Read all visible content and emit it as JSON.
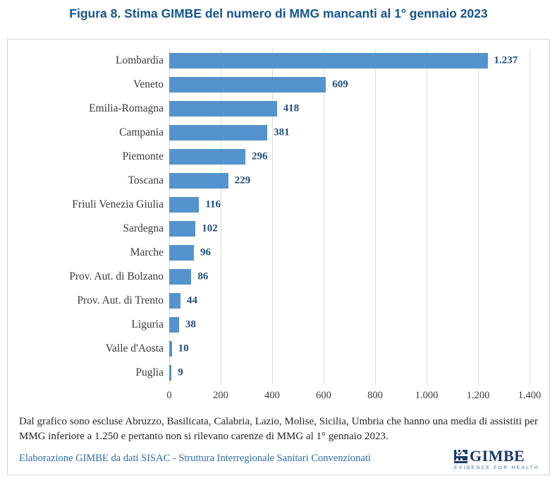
{
  "title": "Figura 8. Stima GIMBE del numero di MMG mancanti al 1° gennaio 2023",
  "chart_data": {
    "type": "bar",
    "orientation": "horizontal",
    "title": "Figura 8. Stima GIMBE del numero di MMG mancanti al 1° gennaio 2023",
    "xlabel": "",
    "ylabel": "",
    "xlim": [
      0,
      1400
    ],
    "grid": true,
    "bar_color": "#5493cd",
    "x_ticks": [
      0,
      200,
      400,
      600,
      800,
      1000,
      1200,
      1400
    ],
    "x_tick_labels": [
      "0",
      "200",
      "400",
      "600",
      "800",
      "1.000",
      "1.200",
      "1.400"
    ],
    "categories": [
      "Lombardia",
      "Veneto",
      "Emilia-Romagna",
      "Campania",
      "Piemonte",
      "Toscana",
      "Friuli Venezia Giulia",
      "Sardegna",
      "Marche",
      "Prov. Aut. di Bolzano",
      "Prov. Aut. di Trento",
      "Liguria",
      "Valle d'Aosta",
      "Puglia"
    ],
    "values": [
      1237,
      609,
      418,
      381,
      296,
      229,
      116,
      102,
      96,
      86,
      44,
      38,
      10,
      9
    ],
    "bars": [
      {
        "category": "Lombardia",
        "value": 1237,
        "display": "1.237"
      },
      {
        "category": "Veneto",
        "value": 609,
        "display": "609"
      },
      {
        "category": "Emilia-Romagna",
        "value": 418,
        "display": "418"
      },
      {
        "category": "Campania",
        "value": 381,
        "display": "381"
      },
      {
        "category": "Piemonte",
        "value": 296,
        "display": "296"
      },
      {
        "category": "Toscana",
        "value": 229,
        "display": "229"
      },
      {
        "category": "Friuli Venezia Giulia",
        "value": 116,
        "display": "116"
      },
      {
        "category": "Sardegna",
        "value": 102,
        "display": "102"
      },
      {
        "category": "Marche",
        "value": 96,
        "display": "96"
      },
      {
        "category": "Prov. Aut. di Bolzano",
        "value": 86,
        "display": "86"
      },
      {
        "category": "Prov. Aut. di Trento",
        "value": 44,
        "display": "44"
      },
      {
        "category": "Liguria",
        "value": 38,
        "display": "38"
      },
      {
        "category": "Valle d'Aosta",
        "value": 10,
        "display": "10"
      },
      {
        "category": "Puglia",
        "value": 9,
        "display": "9"
      }
    ]
  },
  "note": "Dal grafico sono escluse Abruzzo, Basilicata, Calabria, Lazio, Molise, Sicilia, Umbria che hanno una media di assistiti per MMG inferiore a 1.250 e pertanto non si rilevano carenze di MMG al 1° gennaio 2023.",
  "source": "Elaborazione GIMBE da dati SISAC - Struttura Interregionale Sanitari Convenzionati",
  "logo": {
    "wordmark": "GIMBE",
    "tagline": "EVIDENCE FOR HEALTH"
  },
  "colors": {
    "title": "#15568d",
    "bar": "#5493cd",
    "value_label": "#1f4e79",
    "gridline": "#d9d9d9",
    "box_border": "#d4d4d4",
    "note_text": "#262626",
    "source_text": "#2e6da4",
    "logo_navy": "#1b3a67"
  }
}
